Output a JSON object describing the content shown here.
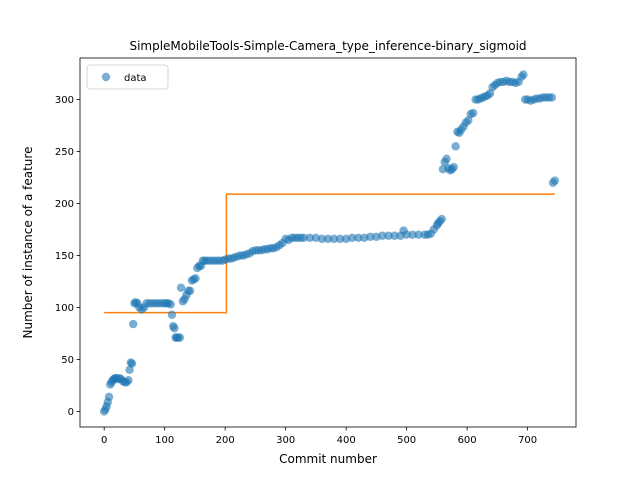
{
  "chart_data": {
    "type": "scatter",
    "title": "SimpleMobileTools-Simple-Camera_type_inference-binary_sigmoid",
    "xlabel": "Commit number",
    "ylabel": "Number of instance of a feature",
    "xlim": [
      -40,
      780
    ],
    "ylim": [
      -15,
      340
    ],
    "xticks": [
      0,
      100,
      200,
      300,
      400,
      500,
      600,
      700
    ],
    "yticks": [
      0,
      50,
      100,
      150,
      200,
      250,
      300
    ],
    "grid": false,
    "legend": {
      "position": "top-left",
      "entries": [
        "data"
      ]
    },
    "colors": {
      "data": "#1f77b4",
      "fit": "#ff7f0e"
    },
    "series": [
      {
        "name": "data",
        "kind": "scatter",
        "x": [
          0,
          2,
          4,
          6,
          8,
          10,
          12,
          14,
          16,
          18,
          20,
          22,
          25,
          28,
          31,
          34,
          37,
          40,
          42,
          44,
          46,
          48,
          50,
          52,
          55,
          58,
          62,
          66,
          70,
          75,
          80,
          85,
          90,
          95,
          100,
          103,
          106,
          110,
          112,
          114,
          116,
          118,
          120,
          122,
          125,
          127,
          130,
          133,
          136,
          139,
          142,
          145,
          148,
          151,
          154,
          157,
          160,
          163,
          166,
          170,
          175,
          180,
          185,
          190,
          195,
          200,
          205,
          210,
          215,
          220,
          225,
          230,
          235,
          240,
          245,
          250,
          255,
          260,
          265,
          270,
          275,
          280,
          285,
          290,
          295,
          300,
          305,
          310,
          315,
          320,
          325,
          330,
          340,
          350,
          360,
          370,
          380,
          390,
          400,
          410,
          420,
          430,
          440,
          450,
          460,
          470,
          480,
          490,
          495,
          500,
          510,
          520,
          530,
          535,
          540,
          545,
          550,
          552,
          555,
          558,
          560,
          563,
          566,
          569,
          572,
          575,
          578,
          581,
          584,
          587,
          590,
          594,
          598,
          602,
          606,
          610,
          614,
          618,
          622,
          626,
          630,
          634,
          638,
          642,
          646,
          650,
          655,
          660,
          665,
          670,
          675,
          680,
          685,
          690,
          693,
          696,
          700,
          705,
          710,
          715,
          720,
          725,
          730,
          735,
          740,
          742,
          745
        ],
        "y": [
          0,
          2,
          5,
          9,
          14,
          26,
          28,
          30,
          31,
          32,
          32,
          31,
          32,
          31,
          29,
          28,
          28,
          30,
          40,
          47,
          46,
          84,
          104,
          105,
          104,
          100,
          98,
          100,
          104,
          104,
          104,
          104,
          104,
          104,
          104,
          104,
          104,
          103,
          93,
          82,
          80,
          71,
          71,
          71,
          71,
          119,
          106,
          108,
          112,
          116,
          116,
          126,
          127,
          128,
          138,
          140,
          140,
          145,
          145,
          145,
          145,
          145,
          145,
          145,
          145,
          146,
          147,
          147,
          148,
          149,
          150,
          150,
          151,
          152,
          154,
          155,
          155,
          155,
          156,
          156,
          157,
          157,
          158,
          160,
          162,
          166,
          165,
          167,
          167,
          167,
          167,
          167,
          167,
          167,
          166,
          166,
          166,
          166,
          166,
          167,
          167,
          167,
          168,
          168,
          169,
          169,
          169,
          169,
          174,
          170,
          170,
          170,
          170,
          170,
          171,
          175,
          179,
          181,
          183,
          185,
          233,
          240,
          243,
          234,
          232,
          233,
          235,
          255,
          269,
          268,
          271,
          274,
          278,
          280,
          286,
          287,
          300,
          300,
          301,
          302,
          303,
          304,
          306,
          312,
          314,
          316,
          317,
          317,
          318,
          317,
          317,
          316,
          317,
          322,
          324,
          300,
          300,
          299,
          300,
          301,
          301,
          302,
          302,
          302,
          302,
          220,
          222
        ]
      },
      {
        "name": "",
        "kind": "step",
        "x": [
          0,
          202,
          202,
          745
        ],
        "y": [
          95,
          95,
          209,
          209
        ]
      }
    ]
  }
}
